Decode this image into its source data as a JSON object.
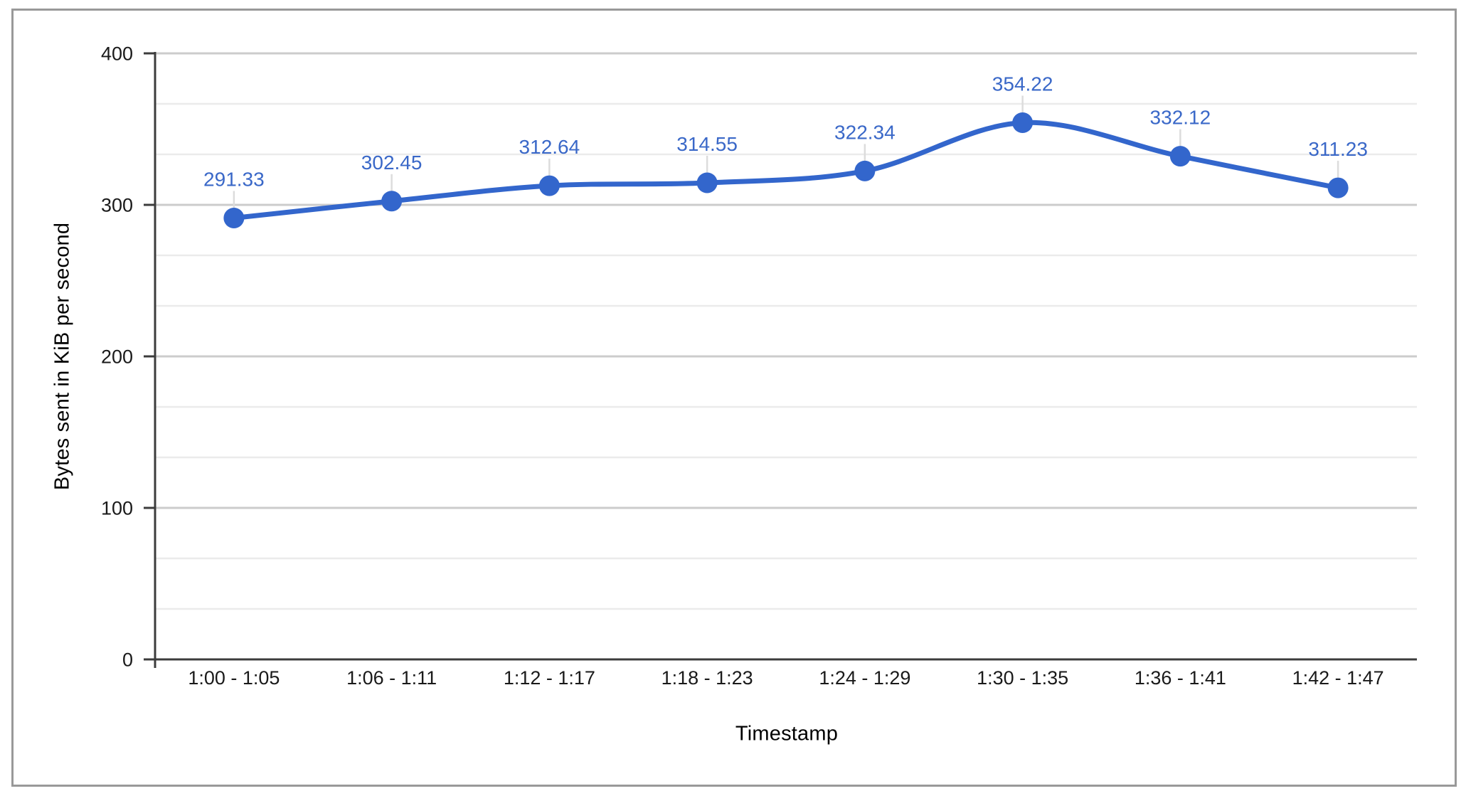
{
  "frame": {
    "border_color": "#999999",
    "background": "#ffffff"
  },
  "chart_data": {
    "type": "line",
    "title": "",
    "categories": [
      "1:00 - 1:05",
      "1:06 - 1:11",
      "1:12 - 1:17",
      "1:18 - 1:23",
      "1:24 - 1:29",
      "1:30 - 1:35",
      "1:36 - 1:41",
      "1:42 - 1:47"
    ],
    "values": [
      291.33,
      302.45,
      312.64,
      314.55,
      322.34,
      354.22,
      332.12,
      311.23
    ],
    "point_labels": [
      "291.33",
      "302.45",
      "312.64",
      "314.55",
      "322.34",
      "354.22",
      "332.12",
      "311.23"
    ],
    "xlabel": "Timestamp",
    "ylabel": "Bytes sent in KiB per second",
    "ylim": [
      0,
      400
    ],
    "yticks": [
      "0",
      "100",
      "200",
      "300",
      "400"
    ],
    "minor_gridlines_per_major": 3,
    "grid": true,
    "legend_position": "none",
    "curve": "smooth",
    "colors": {
      "series": "#3366cc",
      "data_label": "#3a68c8",
      "major_gridline": "#cccccc",
      "minor_gridline": "#ebebeb",
      "axis_line": "#3c3c3c",
      "tick_text": "#1a1a1a",
      "annotation_stem": "#dcdcdc"
    }
  }
}
